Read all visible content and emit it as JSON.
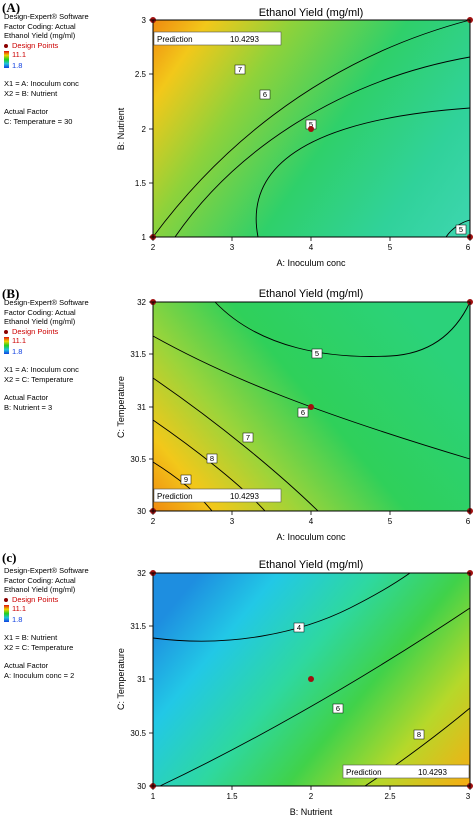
{
  "chart_data": [
    {
      "panel": "(A)",
      "type": "contour",
      "title": "Ethanol Yield (mg/ml)",
      "xlabel": "A: Inoculum conc",
      "ylabel": "B: Nutrient",
      "xlim": [
        2,
        6
      ],
      "ylim": [
        1,
        3
      ],
      "xticks": [
        "2",
        "3",
        "4",
        "5",
        "6"
      ],
      "yticks": [
        "1",
        "1.5",
        "2",
        "2.5",
        "3"
      ],
      "contour_labels": [
        "7",
        "6",
        "5",
        "5"
      ],
      "prediction_label": "Prediction",
      "prediction_value": "10.4293",
      "design_points": [
        [
          2,
          3
        ],
        [
          6,
          3
        ],
        [
          2,
          1
        ],
        [
          6,
          1
        ],
        [
          4,
          2
        ]
      ],
      "sidebar": {
        "software": "Design-Expert® Software",
        "coding": "Factor Coding: Actual",
        "response": "Ethanol Yield (mg/ml)",
        "design_points_label": "Design Points",
        "color_max": "11.1",
        "color_min": "1.8",
        "x1": "X1 = A: Inoculum conc",
        "x2": "X2 = B: Nutrient",
        "actual_factor_title": "Actual Factor",
        "actual_factor": "C: Temperature = 30"
      }
    },
    {
      "panel": "(B)",
      "type": "contour",
      "title": "Ethanol Yield (mg/ml)",
      "xlabel": "A: Inoculum conc",
      "ylabel": "C: Temperature",
      "xlim": [
        2,
        6
      ],
      "ylim": [
        30,
        32
      ],
      "xticks": [
        "2",
        "3",
        "4",
        "5",
        "6"
      ],
      "yticks": [
        "30",
        "30.5",
        "31",
        "31.5",
        "32"
      ],
      "contour_labels": [
        "5",
        "6",
        "7",
        "8",
        "9"
      ],
      "prediction_label": "Prediction",
      "prediction_value": "10.4293",
      "design_points": [
        [
          2,
          32
        ],
        [
          6,
          32
        ],
        [
          2,
          30
        ],
        [
          6,
          30
        ],
        [
          4,
          31
        ]
      ],
      "sidebar": {
        "software": "Design-Expert® Software",
        "coding": "Factor Coding: Actual",
        "response": "Ethanol Yield (mg/ml)",
        "design_points_label": "Design Points",
        "color_max": "11.1",
        "color_min": "1.8",
        "x1": "X1 = A: Inoculum conc",
        "x2": "X2 = C: Temperature",
        "actual_factor_title": "Actual Factor",
        "actual_factor": "B: Nutrient = 3"
      }
    },
    {
      "panel": "(c)",
      "type": "contour",
      "title": "Ethanol Yield (mg/ml)",
      "xlabel": "B: Nutrient",
      "ylabel": "C: Temperature",
      "xlim": [
        1,
        3
      ],
      "ylim": [
        30,
        32
      ],
      "xticks": [
        "1",
        "1.5",
        "2",
        "2.5",
        "3"
      ],
      "yticks": [
        "30",
        "30.5",
        "31",
        "31.5",
        "32"
      ],
      "contour_labels": [
        "4",
        "6",
        "8"
      ],
      "prediction_label": "Prediction",
      "prediction_value": "10.4293",
      "design_points": [
        [
          1,
          32
        ],
        [
          3,
          32
        ],
        [
          1,
          30
        ],
        [
          3,
          30
        ],
        [
          2,
          31
        ]
      ],
      "sidebar": {
        "software": "Design-Expert® Software",
        "coding": "Factor Coding: Actual",
        "response": "Ethanol Yield (mg/ml)",
        "design_points_label": "Design Points",
        "color_max": "11.1",
        "color_min": "1.8",
        "x1": "X1 = B: Nutrient",
        "x2": "X2 = C: Temperature",
        "actual_factor_title": "Actual Factor",
        "actual_factor": "A: Inoculum conc = 2"
      }
    }
  ]
}
